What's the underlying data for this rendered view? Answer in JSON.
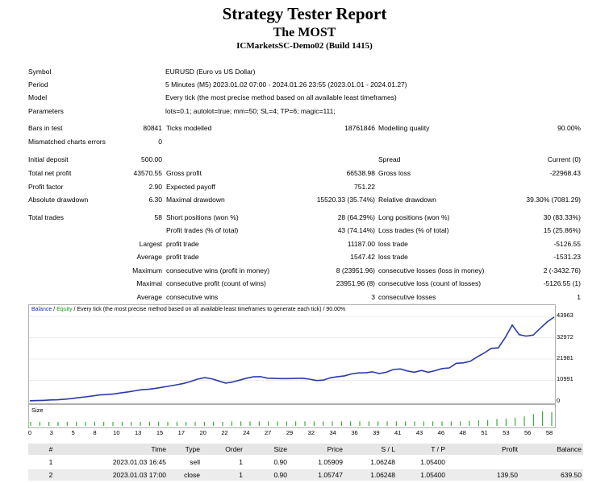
{
  "report": {
    "title": "Strategy Tester Report",
    "expert": "The MOST",
    "server_build": "ICMarketsSC-Demo02 (Build 1415)"
  },
  "info": [
    {
      "label": "Symbol",
      "value": "EURUSD (Euro vs US Dollar)"
    },
    {
      "label": "Period",
      "value": "5 Minutes (M5) 2023.01.02 07:00 - 2024.01.26 23:55 (2023.01.01 - 2024.01.27)"
    },
    {
      "label": "Model",
      "value": "Every tick (the most precise method based on all available least timeframes)"
    },
    {
      "label": "Parameters",
      "value": "lots=0.1; autolot=true; mm=50; SL=4; TP=6; magic=111;"
    }
  ],
  "stats": {
    "bars_in_test": {
      "label": "Bars in test",
      "value": "80841"
    },
    "ticks_modelled": {
      "label": "Ticks modelled",
      "value": "18761846"
    },
    "modelling_quality": {
      "label": "Modelling quality",
      "value": "90.00%"
    },
    "mismatched": {
      "label": "Mismatched charts errors",
      "value": "0"
    },
    "initial_deposit": {
      "label": "Initial deposit",
      "value": "500.00"
    },
    "spread": {
      "label": "Spread",
      "value": "Current (0)"
    },
    "total_net_profit": {
      "label": "Total net profit",
      "value": "43570.55"
    },
    "gross_profit": {
      "label": "Gross profit",
      "value": "66538.98"
    },
    "gross_loss": {
      "label": "Gross loss",
      "value": "-22968.43"
    },
    "profit_factor": {
      "label": "Profit factor",
      "value": "2.90"
    },
    "expected_payoff": {
      "label": "Expected payoff",
      "value": "751.22"
    },
    "absolute_drawdown": {
      "label": "Absolute drawdown",
      "value": "6.30"
    },
    "maximal_drawdown": {
      "label": "Maximal drawdown",
      "value": "15520.33 (35.74%)"
    },
    "relative_drawdown": {
      "label": "Relative drawdown",
      "value": "39.30% (7081.29)"
    },
    "total_trades": {
      "label": "Total trades",
      "value": "58"
    },
    "short_positions": {
      "label": "Short positions (won %)",
      "value": "28 (64.29%)"
    },
    "long_positions": {
      "label": "Long positions (won %)",
      "value": "30 (83.33%)"
    },
    "profit_trades": {
      "label": "Profit trades (% of total)",
      "value": "43 (74.14%)"
    },
    "loss_trades": {
      "label": "Loss trades (% of total)",
      "value": "15 (25.86%)"
    },
    "largest_label": "Largest",
    "largest_profit": {
      "label": "profit trade",
      "value": "11187.00"
    },
    "largest_loss": {
      "label": "loss trade",
      "value": "-5126.55"
    },
    "average_label": "Average",
    "average_profit": {
      "label": "profit trade",
      "value": "1547.42"
    },
    "average_loss": {
      "label": "loss trade",
      "value": "-1531.23"
    },
    "maximum_label": "Maximum",
    "max_cons_wins": {
      "label": "consecutive wins (profit in money)",
      "value": "8 (23951.96)"
    },
    "max_cons_losses": {
      "label": "consecutive losses (loss in money)",
      "value": "2 (-3432.76)"
    },
    "maximal_label": "Maximal",
    "maximal_cons_profit": {
      "label": "consecutive profit (count of wins)",
      "value": "23951.96 (8)"
    },
    "maximal_cons_loss": {
      "label": "consecutive loss (count of losses)",
      "value": "-5126.55 (1)"
    },
    "average2_label": "Average",
    "avg_cons_wins": {
      "label": "consecutive wins",
      "value": "3"
    },
    "avg_cons_losses": {
      "label": "consecutive losses",
      "value": "1"
    }
  },
  "chart_legend": {
    "balance": "Balance",
    "sep": " / ",
    "equity": "Equity",
    "rest": " / Every tick (the most precise method based on all available least timeframes to generate each tick) / 90.00%"
  },
  "chart_data": {
    "type": "line",
    "series": [
      {
        "values": [
          500,
          600,
          700,
          900,
          1000,
          1300,
          1600,
          2100,
          2500,
          3000,
          3500,
          3700,
          4000,
          4500,
          5000,
          5600,
          6200,
          6400,
          6900,
          7500,
          8100,
          8700,
          9400,
          10400,
          11600,
          12400,
          11800,
          10700,
          9600,
          10100,
          11100,
          12100,
          12800,
          12900,
          12100,
          12000,
          11900,
          11900,
          12000,
          12100,
          11600,
          10900,
          11100,
          12300,
          12900,
          13300,
          14300,
          14800,
          14900,
          15400,
          14500,
          15200,
          16600,
          16900,
          15800,
          15200,
          16100,
          15200,
          16000,
          17100,
          17400,
          19800,
          20000,
          20800,
          23100,
          25100,
          27500,
          27700,
          33000,
          39500,
          34500,
          33800,
          34300,
          37800,
          41100,
          43570
        ]
      }
    ],
    "y_ticks": [
      "0",
      "10991",
      "21981",
      "32972",
      "43963"
    ],
    "ylim": [
      0,
      43963
    ],
    "x_ticks": [
      "0",
      "3",
      "5",
      "8",
      "10",
      "13",
      "15",
      "17",
      "20",
      "22",
      "24",
      "27",
      "29",
      "32",
      "34",
      "36",
      "39",
      "41",
      "43",
      "46",
      "48",
      "51",
      "53",
      "56",
      "58"
    ],
    "size_panel_label": "Size",
    "size_values": [
      0.9,
      0.9,
      0.9,
      0.9,
      0.9,
      0.9,
      0.9,
      0.9,
      0.9,
      0.9,
      0.9,
      0.9,
      0.9,
      0.9,
      0.9,
      0.9,
      0.9,
      0.9,
      0.9,
      0.9,
      0.9,
      0.9,
      1,
      1,
      1,
      1,
      1,
      1,
      1,
      1,
      1,
      1,
      1,
      1,
      1,
      1,
      1,
      1,
      1,
      1,
      1,
      1,
      1,
      1,
      1,
      1,
      1,
      1,
      1.1,
      1.2,
      1.3,
      1.5,
      1.6,
      1.8,
      2.1,
      2.6,
      3.2,
      3.0
    ]
  },
  "deals": {
    "columns": [
      "#",
      "Time",
      "Type",
      "Order",
      "Size",
      "Price",
      "S / L",
      "T / P",
      "Profit",
      "Balance"
    ],
    "rows": [
      [
        "1",
        "2023.01.03 16:45",
        "sell",
        "1",
        "0.90",
        "1.05909",
        "1.06248",
        "1.05400",
        "",
        ""
      ],
      [
        "2",
        "2023.01.03 17:00",
        "close",
        "1",
        "0.90",
        "1.05747",
        "1.06248",
        "1.05400",
        "139.50",
        "639.50"
      ]
    ]
  },
  "colors": {
    "balance_line": "#2a3aa8",
    "equity_text": "#1a9a1a",
    "size_bars": "#1a9a1a"
  }
}
